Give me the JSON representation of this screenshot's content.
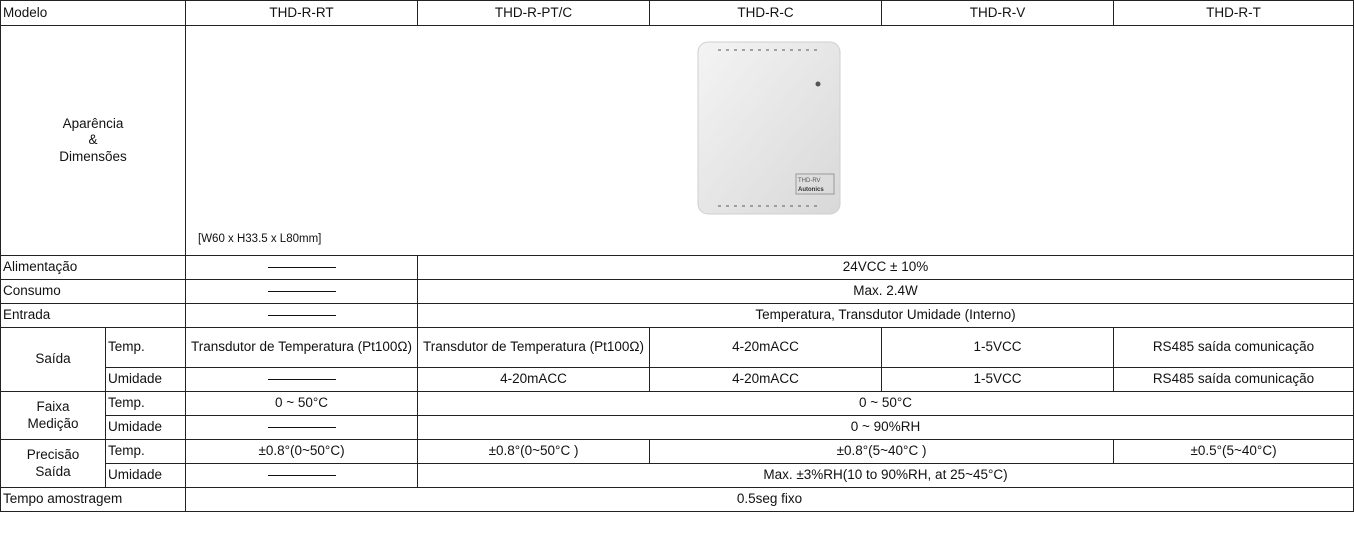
{
  "header": {
    "label": "Modelo",
    "models": [
      "THD-R-RT",
      "THD-R-PT/C",
      "THD-R-C",
      "THD-R-V",
      "THD-R-T"
    ]
  },
  "appearance": {
    "label": [
      "Aparência",
      "&",
      "Dimensões"
    ],
    "dimensions": "[W60 x H33.5 x L80mm]",
    "device_label": [
      "THD-RV",
      "Autonics"
    ]
  },
  "power": {
    "label": "Alimentação",
    "value": "24VCC ± 10%"
  },
  "consumption": {
    "label": "Consumo",
    "value": "Max. 2.4W"
  },
  "input": {
    "label": "Entrada",
    "value": "Temperatura, Transdutor Umidade (Interno)"
  },
  "output": {
    "label": "Saída",
    "temp": {
      "label": "Temp.",
      "values": [
        "Transdutor de Temperatura (Pt100Ω)",
        "Transdutor de Temperatura (Pt100Ω)",
        "4-20mACC",
        "1-5VCC",
        "RS485 saída comunicação"
      ]
    },
    "humidity": {
      "label": "Umidade",
      "values": [
        "4-20mACC",
        "4-20mACC",
        "1-5VCC",
        "RS485 saída comunicação"
      ]
    }
  },
  "range": {
    "label": [
      "Faixa",
      "Medição"
    ],
    "temp": {
      "label": "Temp.",
      "rt": "0 ~ 50°C",
      "others": "0 ~ 50°C"
    },
    "humidity": {
      "label": "Umidade",
      "others": "0 ~ 90%RH"
    }
  },
  "accuracy": {
    "label": [
      "Precisão",
      "Saída"
    ],
    "temp": {
      "label": "Temp.",
      "rt": "±0.8°(0~50°C)",
      "ptc": "±0.8°(0~50°C )",
      "cv": "±0.8°(5~40°C )",
      "t": "±0.5°(5~40°C)"
    },
    "humidity": {
      "label": "Umidade",
      "others": "Max. ±3%RH(10 to 90%RH, at 25~45°C)"
    }
  },
  "sampling": {
    "label": "Tempo amostragem",
    "value": "0.5seg fixo"
  }
}
